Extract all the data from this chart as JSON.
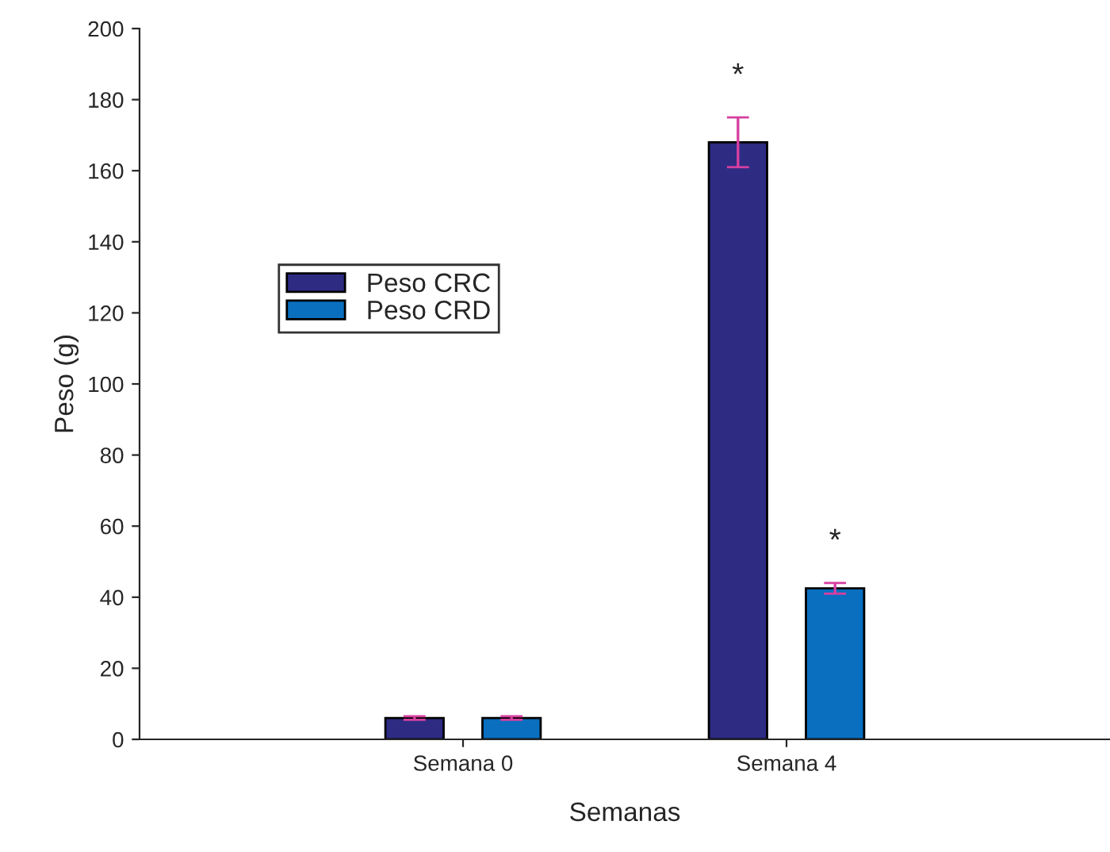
{
  "chart_data": {
    "type": "bar",
    "xlabel": "Semanas",
    "ylabel": "Peso (g)",
    "categories": [
      "Semana 0",
      "Semana 4"
    ],
    "series": [
      {
        "name": "Peso CRC",
        "color": "#2e2b83",
        "values": [
          6,
          168
        ],
        "errors": [
          0.5,
          7
        ]
      },
      {
        "name": "Peso CRD",
        "color": "#0a6fbf",
        "values": [
          6,
          42.5
        ],
        "errors": [
          0.5,
          1.5
        ]
      }
    ],
    "ylim": [
      0,
      200
    ],
    "yticks": [
      0,
      20,
      40,
      60,
      80,
      100,
      120,
      140,
      160,
      180,
      200
    ],
    "annotations": [
      "*",
      "*"
    ],
    "grid": false,
    "legend": "left"
  }
}
